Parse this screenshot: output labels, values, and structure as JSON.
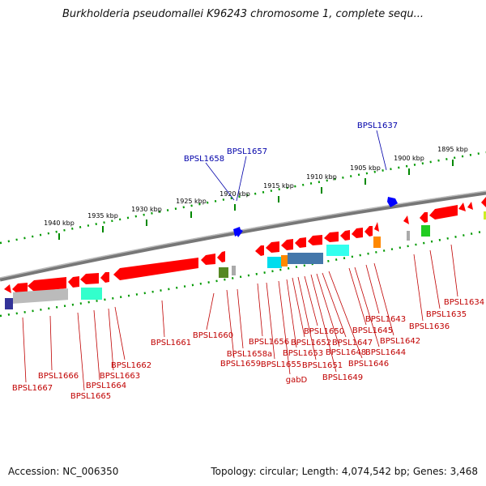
{
  "title": "Burkholderia pseudomallei K96243 chromosome 1, complete sequ...",
  "footer": {
    "accession": "Accession: NC_006350",
    "topology": "Topology: circular; Length: 4,074,542 bp; Genes: 3,468"
  },
  "scale": [
    {
      "label": "1940 kbp",
      "kbp": 1940
    },
    {
      "label": "1935 kbp",
      "kbp": 1935
    },
    {
      "label": "1930 kbp",
      "kbp": 1930
    },
    {
      "label": "1925 kbp",
      "kbp": 1925
    },
    {
      "label": "1920 kbp",
      "kbp": 1920
    },
    {
      "label": "1915 kbp",
      "kbp": 1915
    },
    {
      "label": "1910 kbp",
      "kbp": 1910
    },
    {
      "label": "1905 kbp",
      "kbp": 1905
    },
    {
      "label": "1900 kbp",
      "kbp": 1900
    },
    {
      "label": "1895 kbp",
      "kbp": 1895
    }
  ],
  "top_genes": [
    "BPSL1658",
    "BPSL1657",
    "BPSL1637"
  ],
  "bottom_genes": [
    "BPSL1667",
    "BPSL1666",
    "BPSL1665",
    "BPSL1664",
    "BPSL1663",
    "BPSL1662",
    "BPSL1661",
    "BPSL1660",
    "BPSL1659",
    "BPSL1658a",
    "BPSL1656",
    "BPSL1655",
    "gabD",
    "BPSL1653",
    "BPSL1652",
    "BPSL1651",
    "BPSL1650",
    "BPSL1649",
    "BPSL1648",
    "BPSL1647",
    "BPSL1646",
    "BPSL1645",
    "BPSL1644",
    "BPSL1643",
    "BPSL1642",
    "BPSL1636",
    "BPSL1635",
    "BPSL1634"
  ],
  "colors": {
    "gene": "#ff0000",
    "blue_gene": "#0000ff",
    "backbone": "#888888",
    "tick": "#008800",
    "label_red": "#c00000",
    "label_blue": "#0000aa"
  }
}
